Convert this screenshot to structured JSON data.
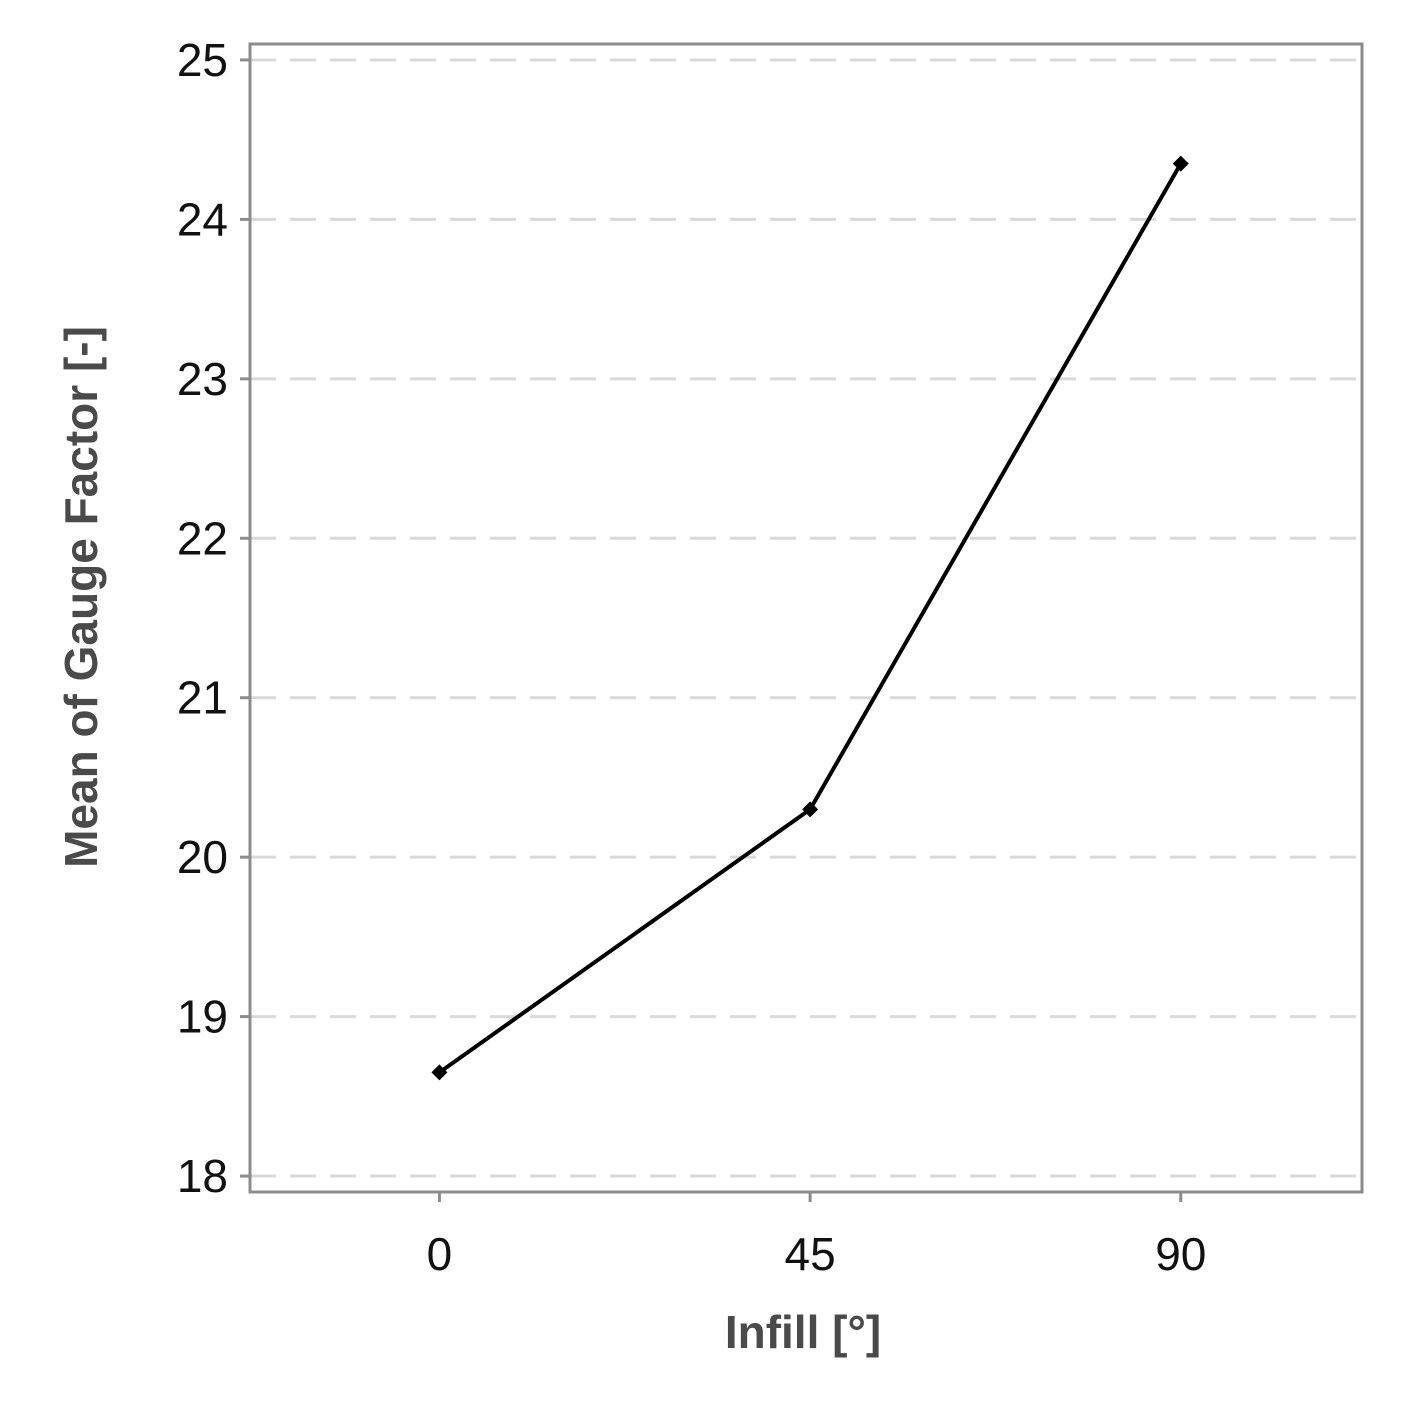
{
  "chart_data": {
    "type": "line",
    "x": [
      0,
      45,
      90
    ],
    "categories": [
      "0",
      "45",
      "90"
    ],
    "series": [
      {
        "values": [
          18.65,
          20.3,
          24.35
        ]
      }
    ],
    "xlabel": "Infill [°]",
    "ylabel": "Mean of Gauge Factor [-]",
    "xlim": [
      -23,
      112
    ],
    "ylim": [
      17.9,
      25.1
    ],
    "yticks": [
      18,
      19,
      20,
      21,
      22,
      23,
      24,
      25
    ],
    "grid": "horizontal dashed",
    "legend": "none",
    "colors": {
      "line": "#000000",
      "grid": "#d9d9d9",
      "frame": "#8c8c8c"
    }
  }
}
